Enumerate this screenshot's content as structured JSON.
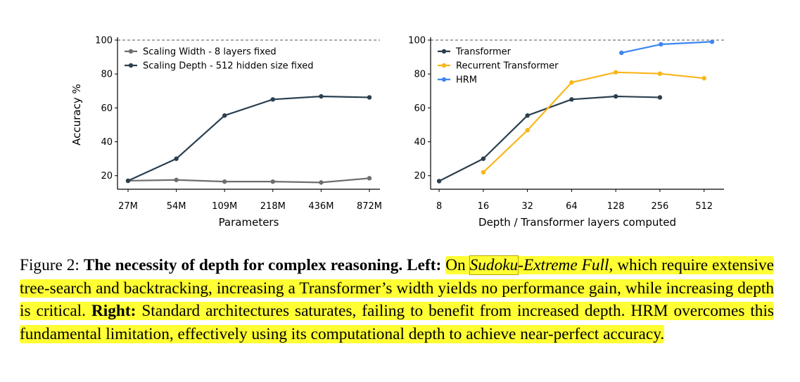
{
  "chart_data": [
    {
      "type": "line",
      "xlabel": "Parameters",
      "ylabel": "Accuracy %",
      "categories": [
        "27M",
        "54M",
        "109M",
        "218M",
        "436M",
        "872M"
      ],
      "yticks": [
        20,
        40,
        60,
        80,
        100
      ],
      "ylim": [
        12,
        100
      ],
      "reference_line": 100,
      "legend_position": "top-left",
      "series": [
        {
          "name": "Scaling Width - 8 layers fixed",
          "color": "#6e6e6e",
          "values": [
            17,
            17.5,
            16.5,
            16.5,
            16,
            18.5
          ]
        },
        {
          "name": "Scaling Depth - 512 hidden size fixed",
          "color": "#2a3f4f",
          "values": [
            17,
            30,
            55.5,
            65,
            66.8,
            66.2
          ]
        }
      ]
    },
    {
      "type": "line",
      "xlabel": "Depth / Transformer layers computed",
      "ylabel": "",
      "x_scale": "log2",
      "xticks": [
        8,
        16,
        32,
        64,
        128,
        256,
        512
      ],
      "xlim": [
        7,
        700
      ],
      "yticks": [
        20,
        40,
        60,
        80,
        100
      ],
      "ylim": [
        12,
        100
      ],
      "reference_line": 100,
      "legend_position": "top-left",
      "series": [
        {
          "name": "Transformer",
          "color": "#2a3f4f",
          "x": [
            8,
            16,
            32,
            64,
            128,
            256
          ],
          "values": [
            16.8,
            30,
            55.5,
            65,
            66.8,
            66.2
          ]
        },
        {
          "name": "Recurrent Transformer",
          "color": "#f9b61a",
          "x": [
            16,
            32,
            64,
            128,
            256,
            512
          ],
          "values": [
            22,
            46.8,
            75,
            81,
            80.2,
            77.5
          ]
        },
        {
          "name": "HRM",
          "color": "#3d86f0",
          "x": [
            140,
            260,
            580
          ],
          "values": [
            92.5,
            97.5,
            99
          ]
        }
      ]
    }
  ],
  "caption": {
    "figure_label": "Figure 2: ",
    "bold_title": "The necessity of depth for complex reasoning. ",
    "left_label": "Left: ",
    "text_on": "On ",
    "italic_sudoku": "Sudoku",
    "italic_rest": "-Extreme Full",
    "text_left": ", which require extensive tree-search and backtracking, increasing a Transformer’s width yields no performance gain, while increasing depth is critical. ",
    "right_label": "Right: ",
    "text_right": "Standard architectures saturates, failing to benefit from increased depth. HRM overcomes this fundamental limitation, effectively using its computational depth to achieve near-perfect accuracy."
  }
}
